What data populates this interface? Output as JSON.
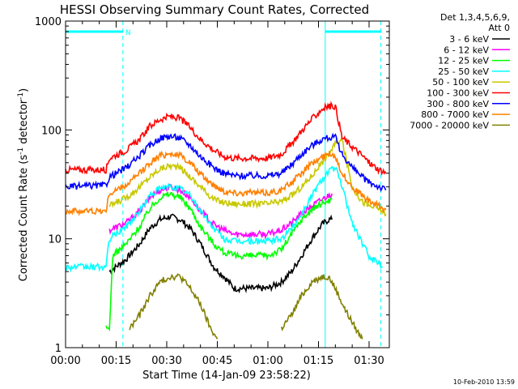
{
  "chart_data": {
    "type": "line",
    "title": "HESSI Observing Summary Count Rates, Corrected",
    "xlabel": "Start Time (14-Jan-09 23:58:22)",
    "ylabel_main": "Corrected Count Rate (s",
    "ylabel_sup1": "-1",
    "ylabel_mid": " detector",
    "ylabel_sup2": "-1",
    "ylabel_end": ")",
    "x_unit": "minutes since 00:00",
    "xlim": [
      0,
      96
    ],
    "ylim": [
      1,
      1000
    ],
    "y_scale": "log",
    "x_ticks": [
      {
        "value": 0,
        "label": "00:00"
      },
      {
        "value": 15,
        "label": "00:15"
      },
      {
        "value": 30,
        "label": "00:30"
      },
      {
        "value": 45,
        "label": "00:45"
      },
      {
        "value": 60,
        "label": "01:00"
      },
      {
        "value": 75,
        "label": "01:15"
      },
      {
        "value": 90,
        "label": "01:30"
      }
    ],
    "y_ticks": [
      {
        "value": 1,
        "label": "1"
      },
      {
        "value": 10,
        "label": "10"
      },
      {
        "value": 100,
        "label": "100"
      },
      {
        "value": 1000,
        "label": "1000"
      }
    ],
    "legend_header": [
      "Det 1,3,4,5,6,9,",
      "Att 0"
    ],
    "legend_position": "right",
    "flags": [
      {
        "label": "N",
        "x_start": 0,
        "x_end": 17,
        "value": 800
      },
      {
        "label": "",
        "x_start": 77,
        "x_end": 93.5,
        "value": 800
      }
    ],
    "vlines_dashed": [
      17,
      93.5
    ],
    "vlines_solid": [
      77
    ],
    "series": [
      {
        "name": "3 - 6 keV",
        "color": "#000000",
        "x": [
          0,
          12,
          13,
          18,
          22,
          25,
          28,
          31,
          34,
          37,
          40,
          44,
          47,
          50,
          55,
          60,
          64,
          67,
          70,
          73,
          76,
          78,
          79,
          80
        ],
        "y": [
          null,
          null,
          5,
          6.5,
          9,
          12.5,
          15,
          16,
          15,
          12.5,
          9,
          5.5,
          4.5,
          3.5,
          3.5,
          3.5,
          4,
          5,
          7,
          10,
          13.5,
          15,
          15,
          null
        ]
      },
      {
        "name": "6 - 12 keV",
        "color": "#ff00ff",
        "x": [
          12,
          13,
          18,
          22,
          25,
          28,
          31,
          34,
          37,
          40,
          44,
          47,
          50,
          55,
          60,
          64,
          67,
          70,
          73,
          76,
          78,
          79,
          80
        ],
        "y": [
          null,
          12,
          14,
          18,
          24,
          28,
          30,
          28,
          24,
          18,
          13.5,
          12,
          11,
          11,
          11,
          12,
          14,
          17,
          20,
          23,
          25,
          26,
          null
        ]
      },
      {
        "name": "12 - 25 keV",
        "color": "#00ff00",
        "x": [
          0,
          12,
          13,
          14,
          18,
          22,
          25,
          28,
          31,
          34,
          37,
          40,
          44,
          47,
          50,
          55,
          60,
          64,
          67,
          70,
          73,
          76,
          78,
          79,
          80
        ],
        "y": [
          null,
          1.5,
          1.5,
          7,
          9,
          13,
          19,
          24,
          26,
          24,
          19,
          13,
          9,
          7.5,
          7,
          7,
          7,
          8,
          11,
          15,
          18.5,
          21,
          22.5,
          23,
          null
        ]
      },
      {
        "name": "25 - 50 keV",
        "color": "#00ffff",
        "x": [
          0,
          12,
          13,
          18,
          22,
          25,
          28,
          31,
          34,
          37,
          40,
          44,
          47,
          50,
          55,
          60,
          64,
          67,
          70,
          73,
          76,
          78,
          80,
          82,
          85,
          88,
          90,
          93,
          94,
          95
        ],
        "y": [
          5.5,
          5.5,
          10,
          13,
          18,
          25,
          29,
          30,
          29,
          25,
          18,
          12.5,
          10,
          9.5,
          9.5,
          9.5,
          10,
          12.5,
          17,
          25,
          35,
          42,
          45,
          30,
          14,
          9,
          7,
          6,
          5.5,
          null
        ]
      },
      {
        "name": "50 - 100 keV",
        "color": "#c8c800",
        "x": [
          0,
          12,
          13,
          18,
          22,
          25,
          28,
          31,
          34,
          37,
          40,
          44,
          47,
          50,
          55,
          60,
          64,
          67,
          70,
          73,
          76,
          78,
          80,
          82,
          85,
          88,
          90,
          93,
          94,
          95
        ],
        "y": [
          null,
          null,
          20,
          24,
          30,
          37,
          44,
          47,
          45,
          37,
          30,
          23,
          21.5,
          21,
          21,
          21,
          22,
          25,
          30,
          38,
          50,
          60,
          75,
          80,
          30,
          22,
          20,
          19,
          18,
          17
        ]
      },
      {
        "name": "100 - 300 keV",
        "color": "#ff0000",
        "x": [
          0,
          12,
          13,
          18,
          22,
          25,
          28,
          31,
          34,
          37,
          40,
          44,
          47,
          50,
          55,
          60,
          64,
          67,
          70,
          73,
          76,
          78,
          80,
          82,
          85,
          88,
          90,
          93,
          94,
          95
        ],
        "y": [
          43,
          43,
          55,
          65,
          82,
          108,
          125,
          133,
          127,
          105,
          82,
          65,
          57,
          55,
          55,
          55,
          60,
          75,
          98,
          125,
          155,
          165,
          165,
          85,
          70,
          58,
          50,
          43,
          42,
          40
        ]
      },
      {
        "name": "300 - 800 keV",
        "color": "#0000ff",
        "x": [
          0,
          12,
          13,
          18,
          22,
          25,
          28,
          31,
          34,
          37,
          40,
          44,
          47,
          50,
          55,
          60,
          64,
          67,
          70,
          73,
          76,
          78,
          80,
          82,
          85,
          88,
          90,
          93,
          94,
          95
        ],
        "y": [
          30,
          31,
          37,
          45,
          58,
          72,
          84,
          88,
          84,
          72,
          57,
          45,
          40,
          38,
          38,
          38,
          40,
          48,
          60,
          72,
          82,
          85,
          85,
          60,
          45,
          37,
          33,
          30,
          29,
          28
        ]
      },
      {
        "name": "800 - 7000 keV",
        "color": "#ff8000",
        "x": [
          0,
          12,
          13,
          18,
          22,
          25,
          28,
          31,
          34,
          37,
          40,
          44,
          47,
          50,
          55,
          60,
          64,
          67,
          70,
          73,
          76,
          78,
          80,
          82,
          85,
          88,
          90,
          93,
          94,
          95
        ],
        "y": [
          18,
          18,
          26,
          31,
          40,
          50,
          58,
          61,
          58,
          50,
          39,
          31,
          27.5,
          26.5,
          26.5,
          26.5,
          28,
          33,
          40,
          49,
          56,
          60,
          58,
          40,
          30,
          25,
          22,
          20,
          19,
          18.5
        ]
      },
      {
        "name": "7000 - 20000 keV",
        "color": "#808000",
        "x": [
          18,
          19,
          22,
          25,
          28,
          31,
          34,
          37,
          40,
          43,
          45,
          46,
          63,
          64,
          67,
          70,
          73,
          76,
          78,
          80,
          83,
          86,
          88,
          89
        ],
        "y": [
          null,
          1.5,
          2,
          3,
          4,
          4.5,
          4.5,
          3.5,
          2.5,
          1.5,
          1.2,
          null,
          null,
          1.5,
          2,
          3,
          4,
          4.5,
          4.5,
          3.5,
          2.2,
          1.5,
          1.2,
          null
        ]
      }
    ],
    "footer_timestamp": "10-Feb-2010 13:59"
  }
}
